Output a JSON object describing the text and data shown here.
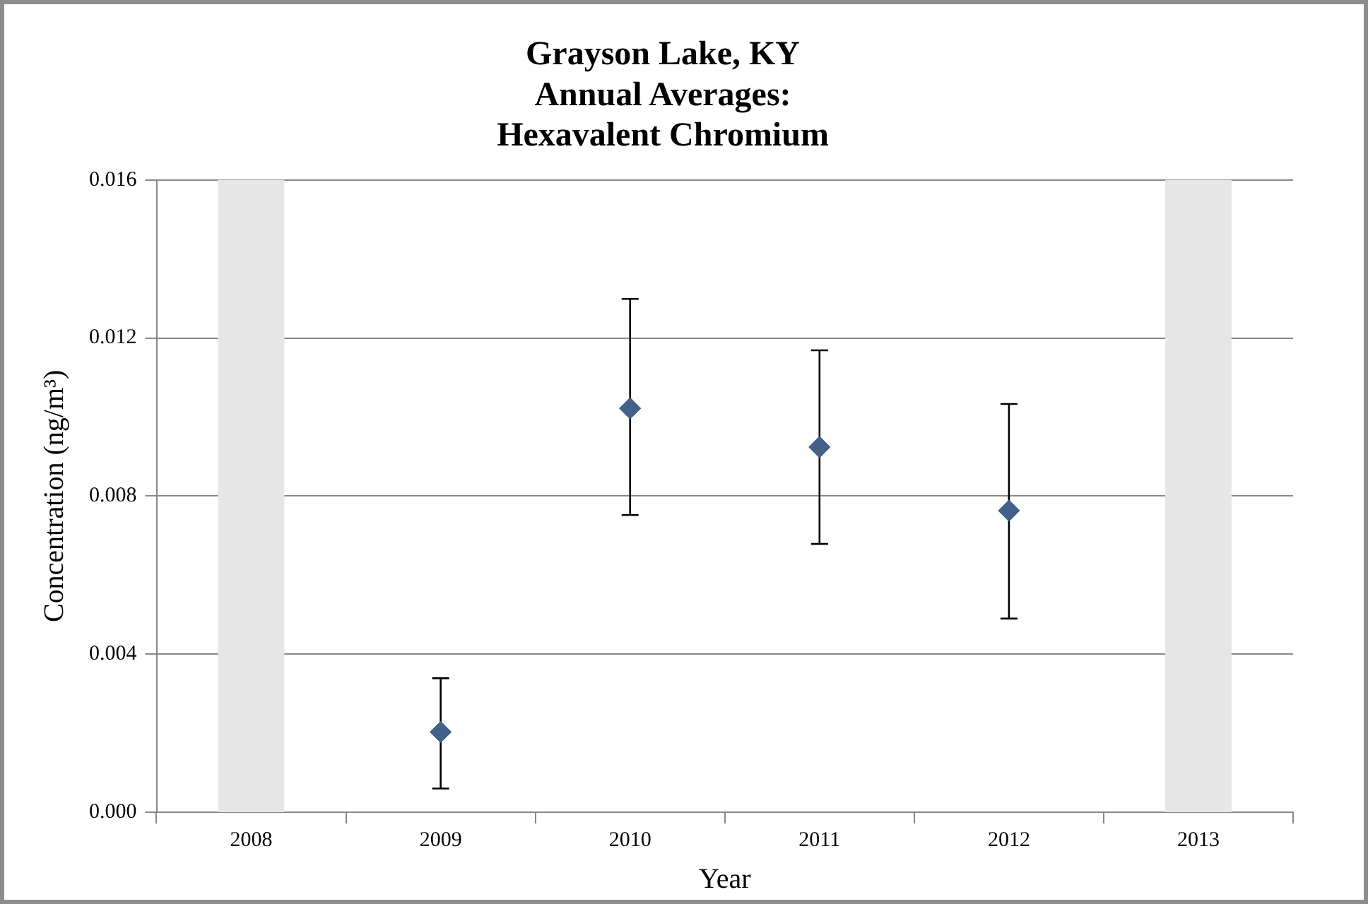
{
  "chart_data": {
    "type": "scatter",
    "title": [
      "Grayson Lake, KY",
      "Annual Averages:",
      "Hexavalent Chromium"
    ],
    "xlabel": "Year",
    "ylabel": "Concentration (ng/m³)",
    "categories": [
      "2008",
      "2009",
      "2010",
      "2011",
      "2012",
      "2013"
    ],
    "values": [
      null,
      0.00203,
      0.01022,
      0.00924,
      0.00763,
      null
    ],
    "errors": [
      null,
      [
        0.0006,
        0.00339
      ],
      [
        0.00752,
        0.01299
      ],
      [
        0.00679,
        0.01169
      ],
      [
        0.0049,
        0.01033
      ],
      null
    ],
    "color": "#44618a",
    "marker": "diamond",
    "ylim": [
      0,
      0.016
    ],
    "yticks": [
      {
        "value": 0,
        "label": "0.000"
      },
      {
        "value": 0.004,
        "label": "0.004"
      },
      {
        "value": 0.008,
        "label": "0.008"
      },
      {
        "value": 0.012,
        "label": "0.012"
      },
      {
        "value": 0.016,
        "label": "0.016"
      }
    ],
    "grid": "y",
    "legend": false,
    "bands": [
      {
        "axis": "x",
        "from": "2008",
        "to": "2008",
        "color": "#e6e6e6"
      },
      {
        "axis": "x",
        "from": "2013",
        "to": "2013",
        "color": "#e6e6e6"
      }
    ]
  }
}
